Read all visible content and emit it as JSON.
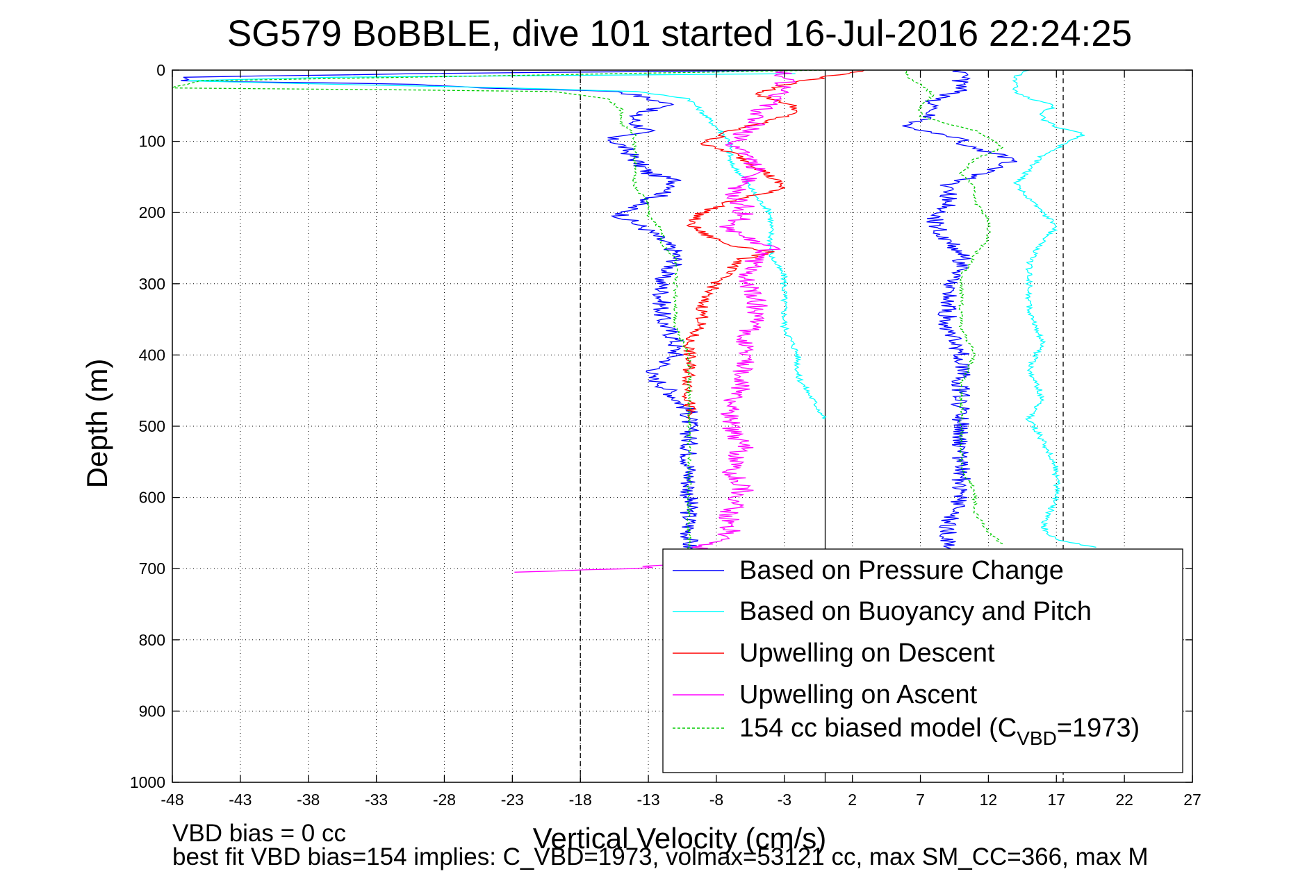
{
  "chart_data": {
    "type": "line",
    "title": "SG579 BoBBLE, dive 101 started 16-Jul-2016 22:24:25",
    "xlabel": "Vertical Velocity (cm/s)",
    "ylabel": "Depth (m)",
    "xlim": [
      -48,
      27
    ],
    "ylim": [
      1000,
      0
    ],
    "y_reversed": true,
    "grid": true,
    "x_ticks": [
      "-48",
      "-43",
      "-38",
      "-33",
      "-28",
      "-23",
      "-18",
      "-13",
      "-8",
      "-3",
      "2",
      "7",
      "12",
      "17",
      "22",
      "27"
    ],
    "y_ticks": [
      "0",
      "100",
      "200",
      "300",
      "400",
      "500",
      "600",
      "700",
      "800",
      "900",
      "1000"
    ],
    "reference_lines": {
      "dashed_x": [
        -18,
        17.5
      ],
      "solid_x": [
        0
      ]
    },
    "legend_position": "bottom-right",
    "legend": [
      {
        "label": "Based on Pressure Change",
        "color": "#0000ff"
      },
      {
        "label": "Based on Buoyancy and Pitch",
        "color": "#00ffff"
      },
      {
        "label": "Upwelling on Descent",
        "color": "#ff0000"
      },
      {
        "label": "Upwelling on Ascent",
        "color": "#ff00ff"
      },
      {
        "label_prefix": "154 cc biased model (C",
        "label_sub": "VBD",
        "label_suffix": "=1973)",
        "color": "#00cc00",
        "dashed": true
      }
    ],
    "series": [
      {
        "name": "Based on Pressure Change",
        "color": "#0000ff",
        "style": "solid",
        "points": [
          [
            -2,
            0
          ],
          [
            -30,
            5
          ],
          [
            -47,
            10
          ],
          [
            -47,
            15
          ],
          [
            -30,
            20
          ],
          [
            -25,
            25
          ],
          [
            -15,
            30
          ],
          [
            -13,
            40
          ],
          [
            -11,
            50
          ],
          [
            -14,
            60
          ],
          [
            -14,
            75
          ],
          [
            -13,
            85
          ],
          [
            -16,
            95
          ],
          [
            -15,
            105
          ],
          [
            -14,
            125
          ],
          [
            -13,
            145
          ],
          [
            -11,
            155
          ],
          [
            -11,
            165
          ],
          [
            -12,
            175
          ],
          [
            -14,
            190
          ],
          [
            -15,
            205
          ],
          [
            -13,
            225
          ],
          [
            -12,
            240
          ],
          [
            -11,
            255
          ],
          [
            -11,
            270
          ],
          [
            -12,
            290
          ],
          [
            -12,
            320
          ],
          [
            -12,
            350
          ],
          [
            -11,
            380
          ],
          [
            -11,
            400
          ],
          [
            -13,
            430
          ],
          [
            -12,
            440
          ],
          [
            -11,
            460
          ],
          [
            -10,
            480
          ],
          [
            -10,
            520
          ],
          [
            -10,
            560
          ],
          [
            -10,
            600
          ],
          [
            -10,
            640
          ],
          [
            -10,
            660
          ],
          [
            -10,
            680
          ],
          [
            -9,
            700
          ],
          [
            -10,
            720
          ],
          [
            0,
            705
          ]
        ],
        "points_ascent": [
          [
            10,
            690
          ],
          [
            9,
            670
          ],
          [
            9,
            640
          ],
          [
            10,
            600
          ],
          [
            10,
            560
          ],
          [
            10,
            520
          ],
          [
            10,
            480
          ],
          [
            10,
            440
          ],
          [
            10,
            400
          ],
          [
            9,
            360
          ],
          [
            9,
            320
          ],
          [
            9,
            300
          ],
          [
            10,
            280
          ],
          [
            10,
            260
          ],
          [
            9,
            240
          ],
          [
            8,
            210
          ],
          [
            9,
            190
          ],
          [
            9,
            160
          ],
          [
            11,
            150
          ],
          [
            13,
            135
          ],
          [
            14,
            125
          ],
          [
            12,
            115
          ],
          [
            10,
            105
          ],
          [
            10,
            95
          ],
          [
            8,
            90
          ],
          [
            6,
            80
          ],
          [
            7,
            70
          ],
          [
            8,
            60
          ],
          [
            8,
            50
          ],
          [
            8,
            40
          ],
          [
            10,
            30
          ],
          [
            10,
            20
          ],
          [
            10,
            10
          ],
          [
            10,
            0
          ]
        ]
      },
      {
        "name": "Based on Buoyancy and Pitch",
        "color": "#00ffff",
        "style": "solid",
        "points": [
          [
            -2,
            5
          ],
          [
            -36,
            10
          ],
          [
            -47,
            15
          ],
          [
            -36,
            20
          ],
          [
            -23,
            25
          ],
          [
            -14,
            30
          ],
          [
            -10,
            40
          ],
          [
            -9,
            60
          ],
          [
            -8,
            80
          ],
          [
            -7,
            100
          ],
          [
            -7,
            130
          ],
          [
            -6,
            150
          ],
          [
            -5,
            180
          ],
          [
            -4,
            200
          ],
          [
            -4,
            230
          ],
          [
            -4,
            260
          ],
          [
            -3,
            290
          ],
          [
            -3,
            320
          ],
          [
            -3,
            360
          ],
          [
            -2,
            400
          ],
          [
            -2,
            430
          ],
          [
            -1,
            460
          ],
          [
            0,
            490
          ]
        ],
        "points_ascent": [
          [
            20,
            670
          ],
          [
            17,
            660
          ],
          [
            16,
            640
          ],
          [
            17,
            600
          ],
          [
            17,
            560
          ],
          [
            16,
            520
          ],
          [
            15,
            490
          ],
          [
            16,
            460
          ],
          [
            15,
            420
          ],
          [
            16,
            380
          ],
          [
            15,
            340
          ],
          [
            15,
            300
          ],
          [
            15,
            270
          ],
          [
            16,
            240
          ],
          [
            17,
            220
          ],
          [
            16,
            200
          ],
          [
            15,
            180
          ],
          [
            14,
            160
          ],
          [
            15,
            140
          ],
          [
            16,
            120
          ],
          [
            18,
            100
          ],
          [
            19,
            90
          ],
          [
            17,
            80
          ],
          [
            16,
            70
          ],
          [
            16,
            60
          ],
          [
            17,
            50
          ],
          [
            15,
            40
          ],
          [
            14,
            30
          ],
          [
            14,
            20
          ],
          [
            14,
            10
          ],
          [
            15,
            0
          ]
        ]
      },
      {
        "name": "Upwelling on Descent",
        "color": "#ff0000",
        "style": "solid",
        "points": [
          [
            3,
            0
          ],
          [
            0,
            10
          ],
          [
            -3,
            20
          ],
          [
            -5,
            35
          ],
          [
            -3,
            45
          ],
          [
            -2,
            55
          ],
          [
            -3,
            65
          ],
          [
            -5,
            75
          ],
          [
            -7,
            85
          ],
          [
            -8,
            95
          ],
          [
            -9,
            105
          ],
          [
            -7,
            115
          ],
          [
            -6,
            125
          ],
          [
            -5,
            135
          ],
          [
            -4,
            150
          ],
          [
            -3,
            165
          ],
          [
            -5,
            175
          ],
          [
            -7,
            185
          ],
          [
            -9,
            200
          ],
          [
            -10,
            215
          ],
          [
            -9,
            230
          ],
          [
            -7,
            245
          ],
          [
            -4,
            255
          ],
          [
            -6,
            265
          ],
          [
            -7,
            280
          ],
          [
            -8,
            300
          ],
          [
            -9,
            320
          ],
          [
            -9,
            350
          ],
          [
            -10,
            380
          ],
          [
            -10,
            410
          ],
          [
            -10,
            430
          ],
          [
            -10,
            460
          ],
          [
            -10,
            490
          ]
        ]
      },
      {
        "name": "Upwelling on Ascent",
        "color": "#ff00ff",
        "style": "solid",
        "points": [
          [
            -23,
            705
          ],
          [
            -14,
            700
          ],
          [
            -12,
            695
          ],
          [
            -11,
            685
          ],
          [
            -9,
            670
          ],
          [
            -7,
            650
          ],
          [
            -7,
            620
          ],
          [
            -6,
            590
          ],
          [
            -7,
            560
          ],
          [
            -6,
            530
          ],
          [
            -7,
            500
          ],
          [
            -7,
            470
          ],
          [
            -6,
            440
          ],
          [
            -6,
            410
          ],
          [
            -6,
            380
          ],
          [
            -5,
            350
          ],
          [
            -5,
            320
          ],
          [
            -6,
            290
          ],
          [
            -5,
            265
          ],
          [
            -4,
            250
          ],
          [
            -6,
            235
          ],
          [
            -7,
            220
          ],
          [
            -6,
            205
          ],
          [
            -6,
            190
          ],
          [
            -7,
            175
          ],
          [
            -6,
            160
          ],
          [
            -5,
            140
          ],
          [
            -6,
            120
          ],
          [
            -7,
            105
          ],
          [
            -6,
            90
          ],
          [
            -5,
            75
          ],
          [
            -5,
            60
          ],
          [
            -4,
            45
          ],
          [
            -3,
            30
          ],
          [
            -3,
            15
          ],
          [
            -3,
            0
          ]
        ]
      },
      {
        "name": "154 cc biased model (CVBD=1973)",
        "color": "#00cc00",
        "style": "dashed",
        "points": [
          [
            0,
            0
          ],
          [
            -46,
            15
          ],
          [
            -48,
            25
          ],
          [
            -30,
            28
          ],
          [
            -20,
            30
          ],
          [
            -16,
            40
          ],
          [
            -15,
            55
          ],
          [
            -15,
            75
          ],
          [
            -14,
            90
          ],
          [
            -14,
            105
          ],
          [
            -14,
            125
          ],
          [
            -14,
            145
          ],
          [
            -14,
            165
          ],
          [
            -13,
            185
          ],
          [
            -13,
            205
          ],
          [
            -12,
            225
          ],
          [
            -12,
            245
          ],
          [
            -11,
            265
          ],
          [
            -11,
            285
          ],
          [
            -11,
            300
          ],
          [
            -11,
            330
          ],
          [
            -11,
            360
          ],
          [
            -10,
            400
          ],
          [
            -10,
            430
          ],
          [
            -10,
            460
          ],
          [
            -10,
            500
          ],
          [
            -10,
            540
          ],
          [
            -10,
            580
          ],
          [
            -10,
            620
          ],
          [
            -10,
            660
          ],
          [
            -10,
            690
          ]
        ],
        "points_ascent": [
          [
            13,
            665
          ],
          [
            12,
            650
          ],
          [
            11,
            620
          ],
          [
            11,
            590
          ],
          [
            10,
            560
          ],
          [
            10,
            520
          ],
          [
            10,
            480
          ],
          [
            10,
            440
          ],
          [
            11,
            400
          ],
          [
            10,
            360
          ],
          [
            10,
            320
          ],
          [
            10,
            290
          ],
          [
            11,
            260
          ],
          [
            12,
            235
          ],
          [
            12,
            210
          ],
          [
            11,
            185
          ],
          [
            11,
            165
          ],
          [
            10,
            145
          ],
          [
            11,
            125
          ],
          [
            13,
            110
          ],
          [
            12,
            95
          ],
          [
            11,
            85
          ],
          [
            9,
            75
          ],
          [
            7,
            65
          ],
          [
            7,
            50
          ],
          [
            8,
            35
          ],
          [
            7,
            20
          ],
          [
            6,
            10
          ],
          [
            6,
            0
          ]
        ]
      }
    ]
  },
  "footnotes": {
    "line1": "VBD bias = 0 cc",
    "line2": "best fit VBD bias=154 implies: C_VBD=1973, volmax=53121 cc, max SM_CC=366, max M"
  }
}
